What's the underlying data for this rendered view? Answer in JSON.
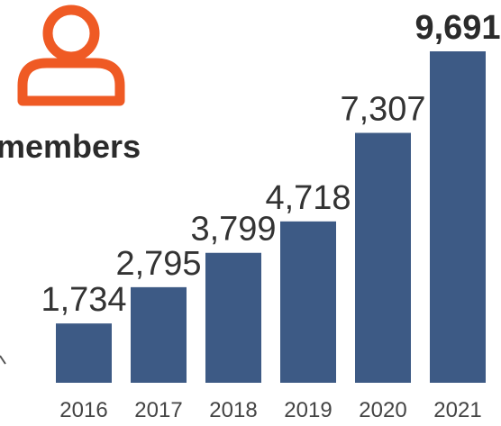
{
  "header": {
    "icon": "user-icon",
    "icon_color": "#ef5a24",
    "label": "members"
  },
  "chart_data": {
    "type": "bar",
    "categories": [
      "2016",
      "2017",
      "2018",
      "2019",
      "2020",
      "2021"
    ],
    "values": [
      1734,
      2795,
      3799,
      4718,
      7307,
      9691
    ],
    "value_labels": [
      "1,734",
      "2,795",
      "3,799",
      "4,718",
      "7,307",
      "9,691"
    ],
    "highlight_index": 5,
    "bar_color": "#3d5a85",
    "ylim": [
      0,
      9691
    ],
    "grid": false,
    "title": "",
    "xlabel": "",
    "ylabel": ""
  }
}
